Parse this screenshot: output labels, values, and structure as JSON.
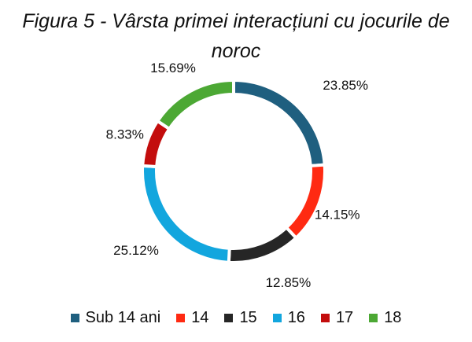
{
  "chart_data": {
    "type": "pie",
    "title": "Figura 5 - Vârsta primei interacțiuni cu jocurile de noroc",
    "categories": [
      "Sub 14 ani",
      "14",
      "15",
      "16",
      "17",
      "18"
    ],
    "values": [
      23.85,
      14.15,
      12.85,
      25.12,
      8.33,
      15.69
    ],
    "data_labels": [
      "23.85%",
      "14.15%",
      "12.85%",
      "25.12%",
      "8.33%",
      "15.69%"
    ],
    "colors": [
      "#1f5f7f",
      "#ff2a12",
      "#262626",
      "#12a6de",
      "#c30d0d",
      "#4ca834"
    ],
    "donut": true,
    "legend_position": "bottom"
  }
}
